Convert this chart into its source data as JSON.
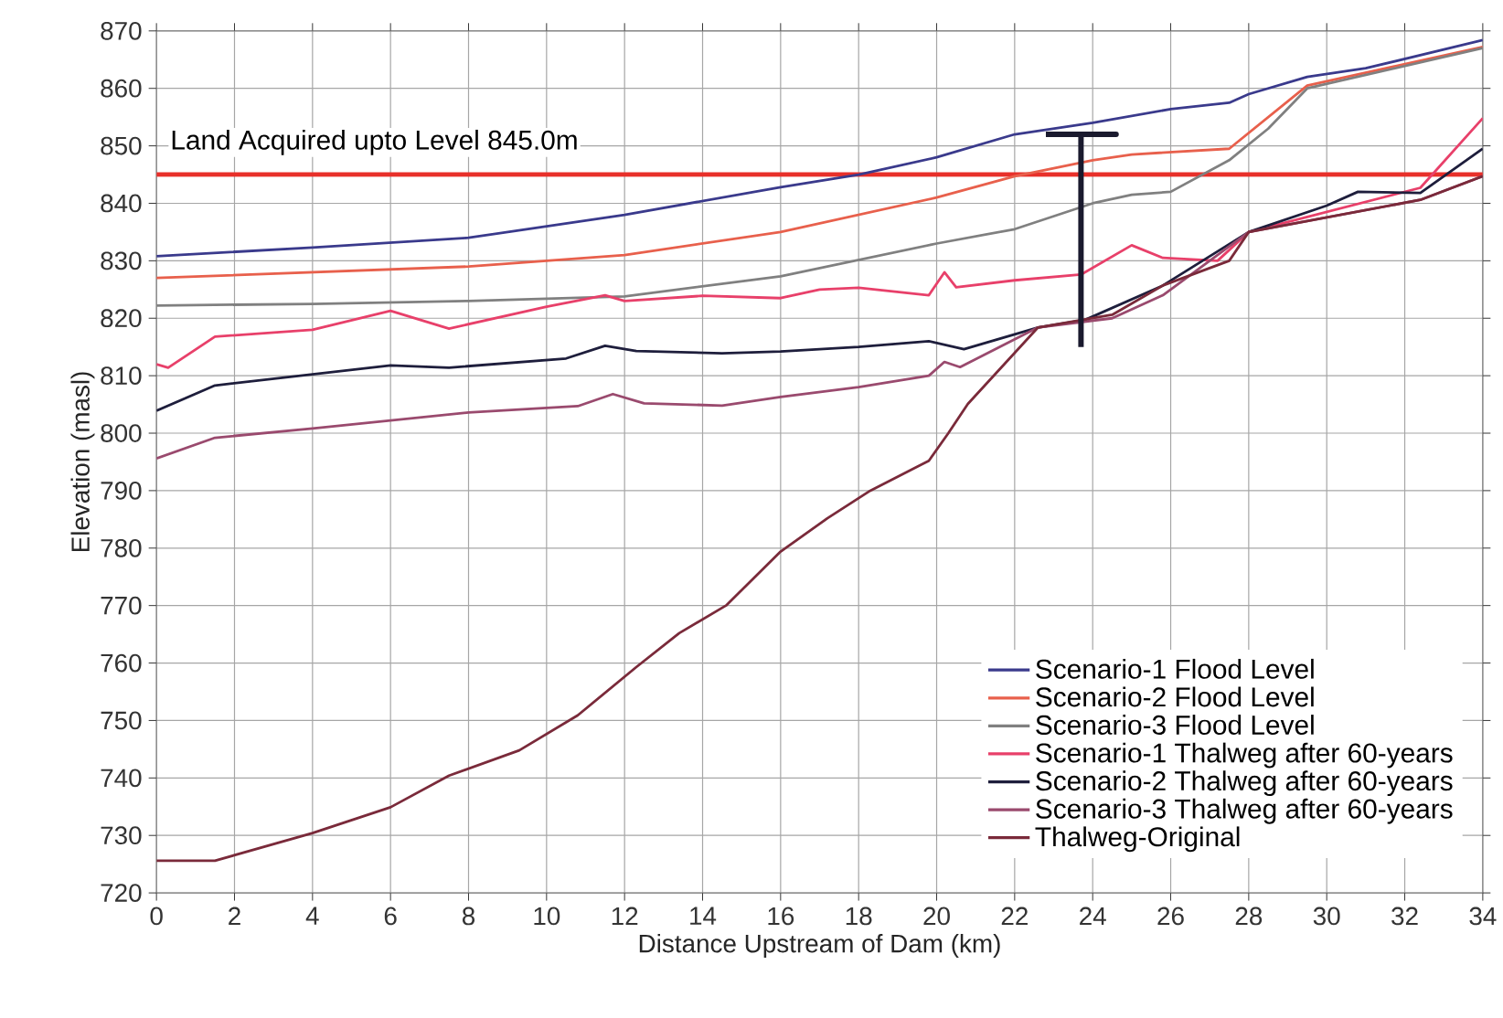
{
  "chart_data": {
    "type": "line",
    "xlabel": "Distance Upstream of Dam (km)",
    "ylabel": "Elevation (masl)",
    "xlim": [
      0,
      34
    ],
    "xticks": [
      0,
      2,
      4,
      6,
      8,
      10,
      12,
      14,
      16,
      18,
      20,
      22,
      24,
      26,
      28,
      30,
      32,
      34
    ],
    "ylim": [
      720,
      870
    ],
    "yticks": [
      720,
      730,
      740,
      750,
      760,
      770,
      780,
      790,
      800,
      810,
      820,
      830,
      840,
      850,
      860,
      870
    ],
    "grid": true,
    "legend": "bottom right",
    "marker": "none",
    "line_style": "solid",
    "ref_lines": [
      {
        "axis": "y",
        "value": 845,
        "label": "Land Acquired upto Level 845.0m",
        "color": "#e8302a"
      }
    ],
    "series": [
      {
        "name": "Scenario-1 Flood Level",
        "color": "#3a3a8c",
        "x": [
          0,
          4,
          8,
          12,
          16,
          18,
          20,
          22,
          24,
          26,
          27.5,
          28,
          29.5,
          31,
          34
        ],
        "values": [
          830.8,
          832.3,
          834,
          838,
          842.8,
          845,
          848,
          852,
          854,
          856.4,
          857.5,
          859,
          862,
          863.5,
          868.4
        ]
      },
      {
        "name": "Scenario-2 Flood Level",
        "color": "#e8604c",
        "x": [
          0,
          4,
          8,
          12,
          16,
          18,
          20,
          22,
          24,
          25,
          27.5,
          29.5,
          34
        ],
        "values": [
          827,
          828,
          829,
          831,
          835,
          838,
          841,
          844.7,
          847.5,
          848.5,
          849.5,
          860.5,
          867.2
        ]
      },
      {
        "name": "Scenario-3 Flood Level",
        "color": "#808080",
        "x": [
          0,
          4,
          8,
          12,
          16,
          20,
          22,
          24,
          25,
          26,
          27.5,
          28.5,
          29.5,
          34
        ],
        "values": [
          822.2,
          822.5,
          823,
          823.8,
          827.3,
          833,
          835.5,
          840,
          841.5,
          842,
          847.5,
          853,
          860,
          867
        ]
      },
      {
        "name": "Scenario-1 Thalweg after 60-years",
        "color": "#e8406a",
        "x": [
          0,
          0.3,
          1.5,
          4,
          6,
          7.5,
          10,
          11.5,
          12,
          14,
          16,
          17,
          18,
          19.8,
          20.2,
          20.5,
          22,
          23.7,
          25,
          25.8,
          27.2,
          28,
          32.4,
          34
        ],
        "values": [
          812,
          811.4,
          816.8,
          818,
          821.3,
          818.2,
          822,
          824,
          823,
          823.9,
          823.5,
          825,
          825.3,
          824,
          828,
          825.4,
          826.6,
          827.6,
          832.7,
          830.5,
          830,
          835,
          842.7,
          854.8
        ]
      },
      {
        "name": "Scenario-2 Thalweg after 60-years",
        "color": "#1e1e3c",
        "x": [
          0,
          1.5,
          6,
          7.5,
          10.5,
          11.5,
          12.3,
          14.5,
          16,
          18,
          19.8,
          20.7,
          22.6,
          23.8,
          25.8,
          28,
          30,
          30.8,
          32.4,
          34
        ],
        "values": [
          803.9,
          808.3,
          811.8,
          811.4,
          813,
          815.2,
          814.3,
          813.9,
          814.2,
          815,
          816,
          814.6,
          818.4,
          819.7,
          825.7,
          835,
          839.6,
          842,
          841.8,
          849.5
        ]
      },
      {
        "name": "Scenario-3 Thalweg after 60-years",
        "color": "#9a4a6e",
        "x": [
          0,
          1.5,
          4,
          8,
          10.8,
          11.7,
          12.5,
          14.5,
          16,
          18,
          19.8,
          20.2,
          20.6,
          22.6,
          24.5,
          25.8,
          28,
          32.4,
          34
        ],
        "values": [
          795.6,
          799.2,
          800.8,
          803.6,
          804.7,
          806.8,
          805.2,
          804.8,
          806.3,
          808,
          810,
          812.4,
          811.5,
          818.4,
          820,
          824,
          835,
          840.6,
          844.7
        ]
      },
      {
        "name": "Thalweg-Original",
        "color": "#7a2a3a",
        "x": [
          0,
          1.5,
          4,
          6,
          7.5,
          9.3,
          10.8,
          12.3,
          13.4,
          14.6,
          16,
          17.2,
          18.3,
          19.8,
          20.3,
          20.8,
          22.6,
          24.5,
          25.8,
          27.5,
          28,
          32.4,
          34
        ],
        "values": [
          725.6,
          725.6,
          730.4,
          734.9,
          740.4,
          744.8,
          750.9,
          759.3,
          765.2,
          770,
          779.4,
          785.2,
          790,
          795.2,
          800,
          805.1,
          818.4,
          820.6,
          825.7,
          830,
          835,
          840.6,
          844.7
        ]
      },
      {
        "type": "line",
        "color": "#1a1a2e",
        "x": [
          22.8,
          24.6,
          23.7,
          23.7
        ],
        "values": [
          852,
          852,
          852,
          815
        ]
      }
    ]
  }
}
